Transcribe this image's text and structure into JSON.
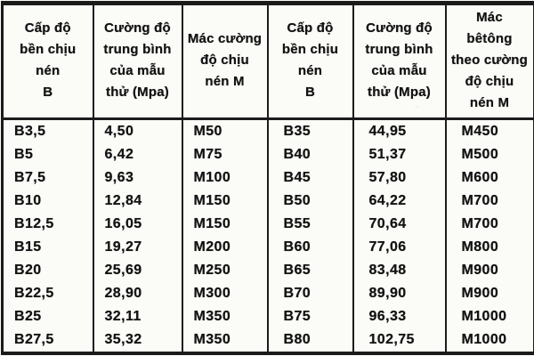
{
  "document": {
    "kind": "scanned-table",
    "language": "vi",
    "topic": "Concrete compressive strength class B vs specimen strength (Mpa) vs grade mark M"
  },
  "colors": {
    "paper": "#fbfbf8",
    "ink": "#141414",
    "border": "#1b1b1b"
  },
  "table": {
    "headers": [
      {
        "text": "Cấp độ\nbền chịu\nnén\nB"
      },
      {
        "text": "Cường độ\ntrung bình\ncủa mẫu\nthử (Mpa)"
      },
      {
        "text": "Mác cường\nđộ chịu\nnén M"
      },
      {
        "text": "Cấp độ\nbền chịu\nnén\nB"
      },
      {
        "text": "Cường độ\ntrung bình\ncủa mẫu\nthử (Mpa)"
      },
      {
        "text": "Mác\nbêtông\ntheo cường\nđộ chịu\nnén M"
      }
    ],
    "rows": [
      [
        "B3,5",
        "4,50",
        "M50",
        "B35",
        "44,95",
        "M450"
      ],
      [
        "B5",
        "6,42",
        "M75",
        "B40",
        "51,37",
        "M500"
      ],
      [
        "B7,5",
        "9,63",
        "M100",
        "B45",
        "57,80",
        "M600"
      ],
      [
        "B10",
        "12,84",
        "M150",
        "B50",
        "64,22",
        "M700"
      ],
      [
        "B12,5",
        "16,05",
        "M150",
        "B55",
        "70,64",
        "M700"
      ],
      [
        "B15",
        "19,27",
        "M200",
        "B60",
        "77,06",
        "M800"
      ],
      [
        "B20",
        "25,69",
        "M250",
        "B65",
        "83,48",
        "M900"
      ],
      [
        "B22,5",
        "28,90",
        "M300",
        "B70",
        "89,90",
        "M900"
      ],
      [
        "B25",
        "32,11",
        "M350",
        "B75",
        "96,33",
        "M1000"
      ],
      [
        "B27,5",
        "35,32",
        "M350",
        "B80",
        "102,75",
        "M1000"
      ]
    ]
  }
}
